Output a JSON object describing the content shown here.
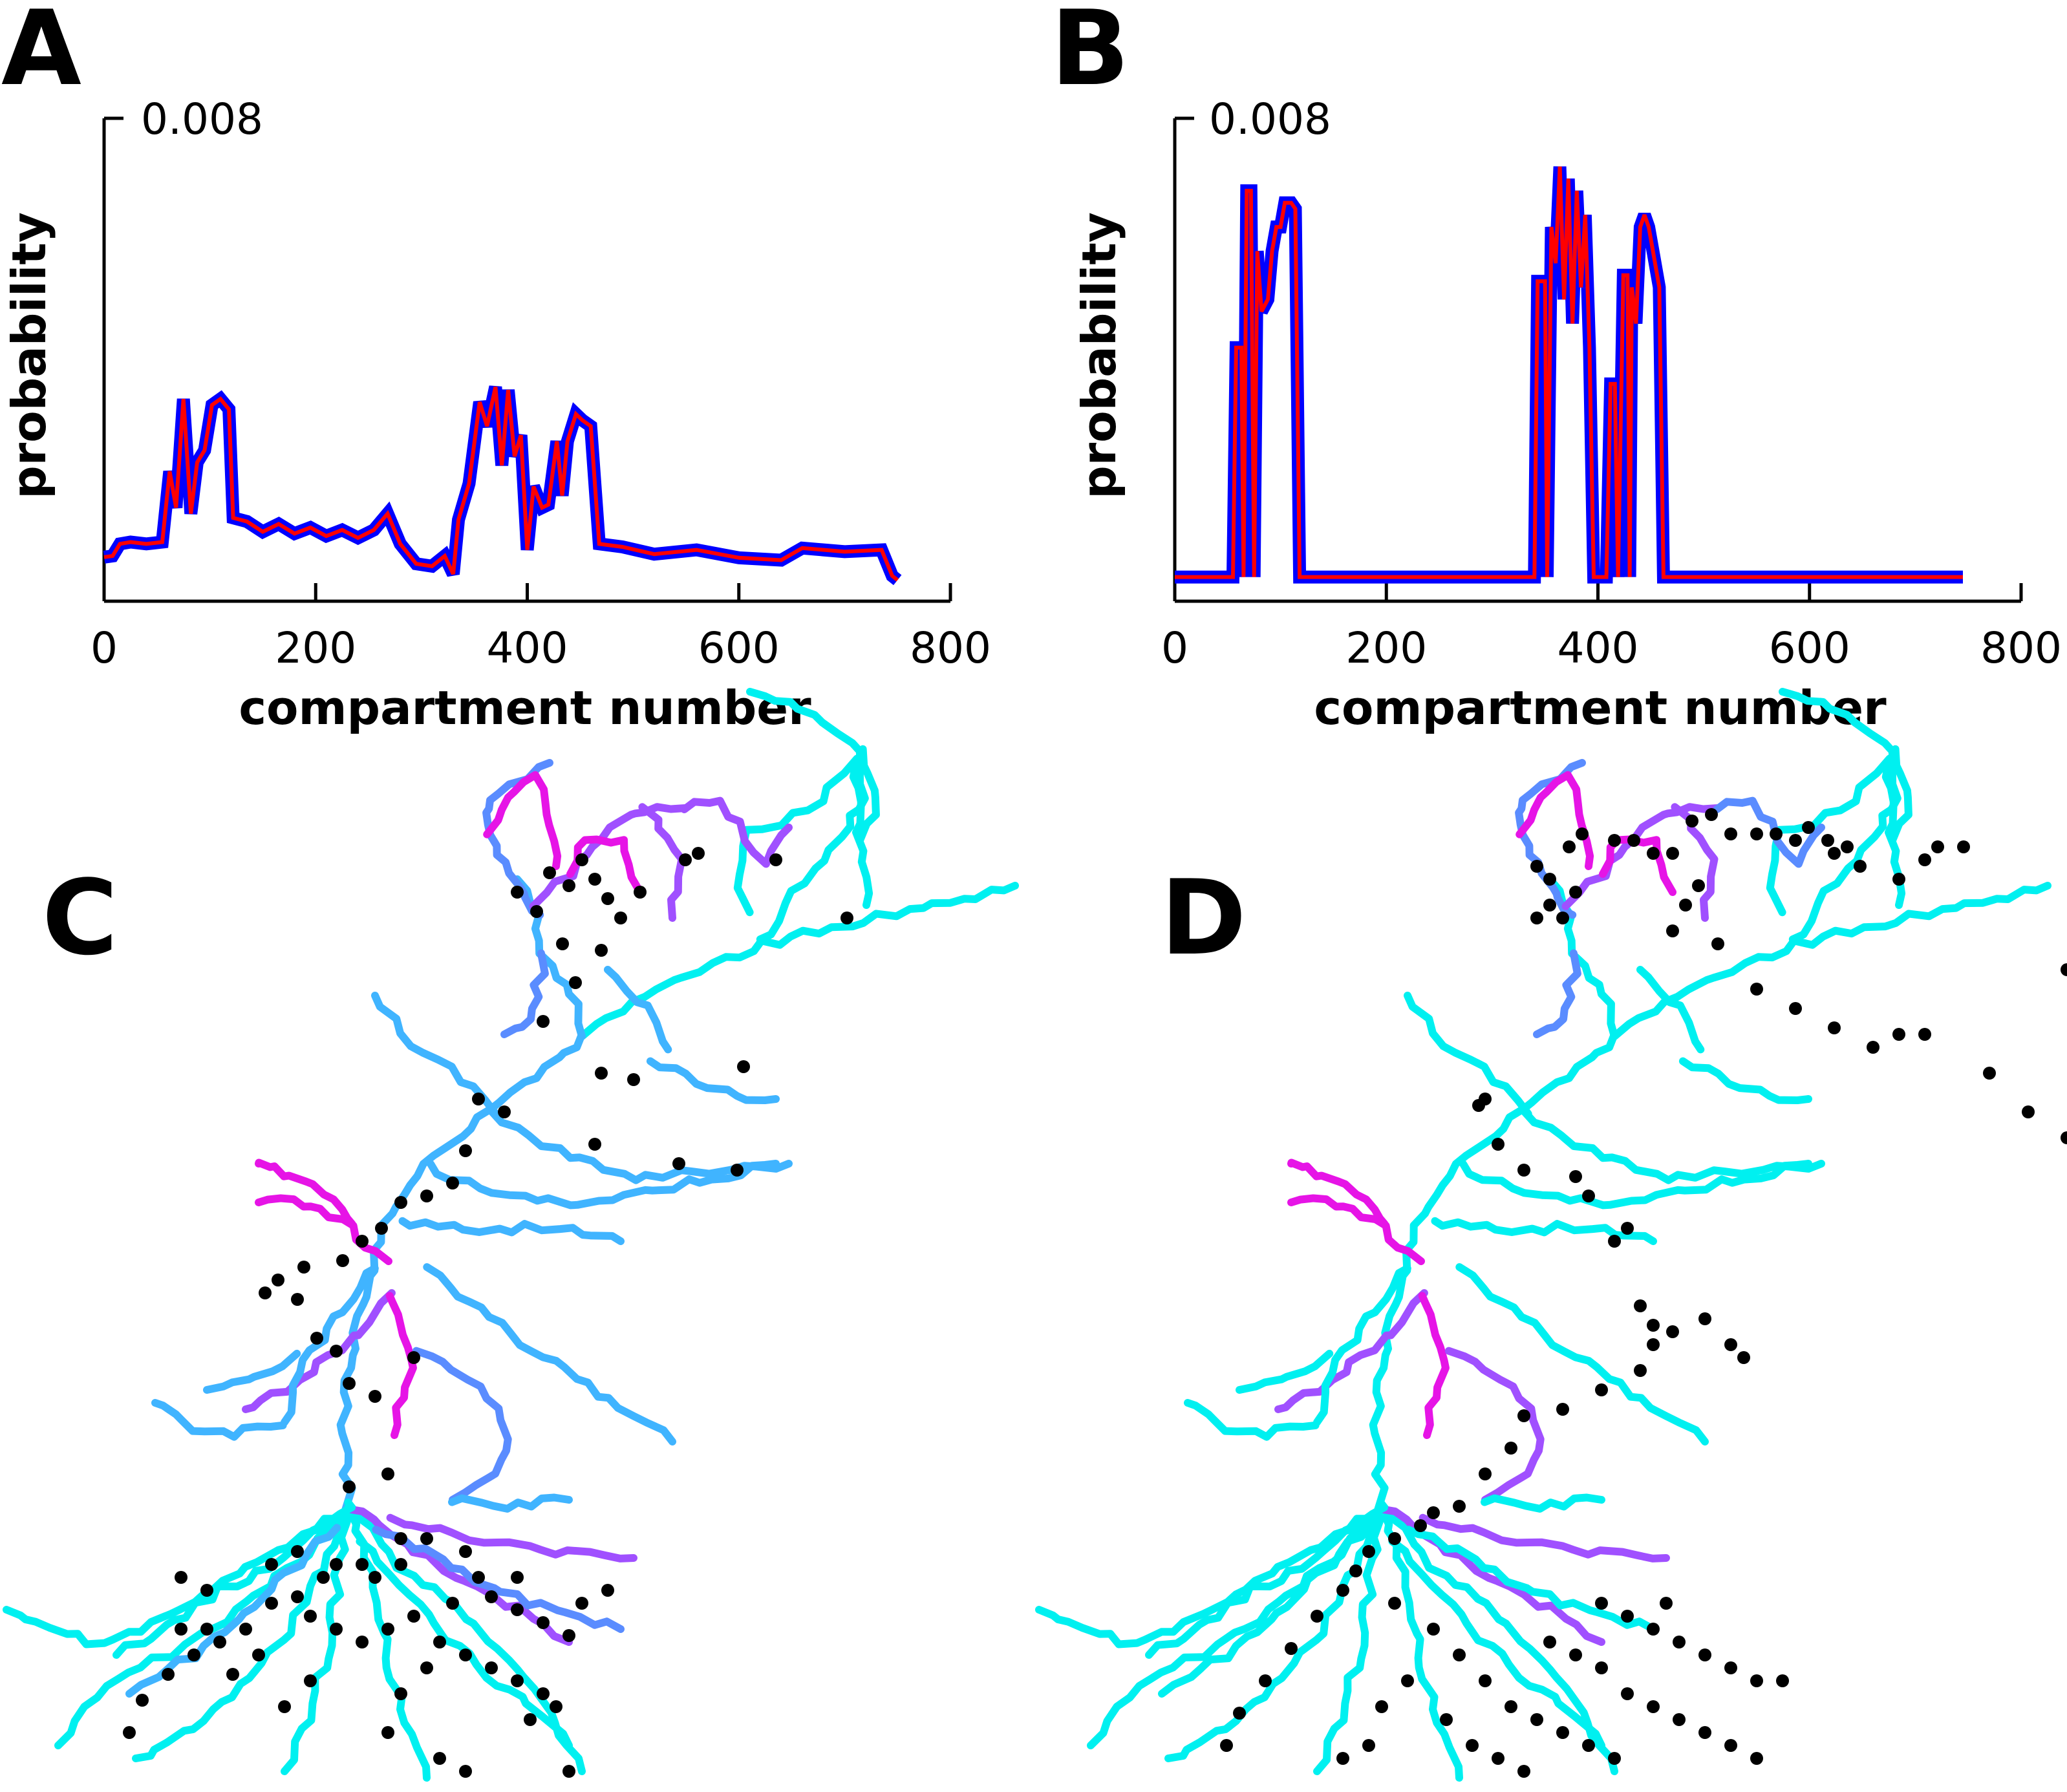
{
  "panel_letters": {
    "a": "A",
    "b": "B",
    "c": "C",
    "d": "D"
  },
  "chart_data": [
    {
      "panel": "A",
      "type": "line",
      "title": "",
      "xlabel": "compartment number",
      "ylabel": "probability",
      "xlim": [
        0,
        800
      ],
      "ylim": [
        0,
        0.008
      ],
      "xticks": [
        0,
        200,
        400,
        600,
        800
      ],
      "xtick_labels": [
        "0",
        "200",
        "400",
        "600",
        "800"
      ],
      "ytick_label": "0.008",
      "grid": false,
      "series": [
        {
          "color": "#0000ff",
          "values": [
            [
              0,
              0.00073
            ],
            [
              8,
              0.00075
            ],
            [
              15,
              0.00095
            ],
            [
              25,
              0.00098
            ],
            [
              40,
              0.00095
            ],
            [
              55,
              0.00098
            ],
            [
              62,
              0.00215
            ],
            [
              68,
              0.00155
            ],
            [
              75,
              0.00335
            ],
            [
              82,
              0.00145
            ],
            [
              88,
              0.0023
            ],
            [
              95,
              0.0025
            ],
            [
              102,
              0.00325
            ],
            [
              110,
              0.00335
            ],
            [
              118,
              0.00318
            ],
            [
              122,
              0.00138
            ],
            [
              135,
              0.00132
            ],
            [
              150,
              0.00115
            ],
            [
              165,
              0.00128
            ],
            [
              180,
              0.00112
            ],
            [
              195,
              0.00122
            ],
            [
              210,
              0.00108
            ],
            [
              225,
              0.00118
            ],
            [
              240,
              0.00105
            ],
            [
              255,
              0.00118
            ],
            [
              268,
              0.00145
            ],
            [
              280,
              0.00095
            ],
            [
              295,
              0.00062
            ],
            [
              310,
              0.00058
            ],
            [
              322,
              0.00075
            ],
            [
              330,
              0.00045
            ],
            [
              335,
              0.00135
            ],
            [
              345,
              0.00195
            ],
            [
              355,
              0.0033
            ],
            [
              362,
              0.0029
            ],
            [
              370,
              0.00355
            ],
            [
              376,
              0.00225
            ],
            [
              382,
              0.0035
            ],
            [
              388,
              0.0024
            ],
            [
              394,
              0.00275
            ],
            [
              400,
              0.00085
            ],
            [
              406,
              0.0019
            ],
            [
              414,
              0.00155
            ],
            [
              420,
              0.0016
            ],
            [
              428,
              0.00265
            ],
            [
              433,
              0.00175
            ],
            [
              438,
              0.00265
            ],
            [
              446,
              0.0031
            ],
            [
              452,
              0.003
            ],
            [
              460,
              0.0029
            ],
            [
              468,
              0.00095
            ],
            [
              490,
              0.0009
            ],
            [
              520,
              0.00078
            ],
            [
              560,
              0.00085
            ],
            [
              600,
              0.00072
            ],
            [
              640,
              0.00068
            ],
            [
              660,
              0.00088
            ],
            [
              700,
              0.00082
            ],
            [
              735,
              0.00085
            ],
            [
              745,
              0.00042
            ],
            [
              750,
              0.00035
            ]
          ]
        },
        {
          "color": "#ff0000",
          "values": [
            [
              0,
              0.00073
            ],
            [
              8,
              0.00075
            ],
            [
              15,
              0.00095
            ],
            [
              25,
              0.00098
            ],
            [
              40,
              0.00095
            ],
            [
              55,
              0.00098
            ],
            [
              62,
              0.00215
            ],
            [
              68,
              0.00155
            ],
            [
              75,
              0.00335
            ],
            [
              82,
              0.00145
            ],
            [
              88,
              0.0023
            ],
            [
              95,
              0.0025
            ],
            [
              102,
              0.00325
            ],
            [
              110,
              0.00335
            ],
            [
              118,
              0.00318
            ],
            [
              122,
              0.00138
            ],
            [
              135,
              0.00132
            ],
            [
              150,
              0.00115
            ],
            [
              165,
              0.00128
            ],
            [
              180,
              0.00112
            ],
            [
              195,
              0.00122
            ],
            [
              210,
              0.00108
            ],
            [
              225,
              0.00118
            ],
            [
              240,
              0.00105
            ],
            [
              255,
              0.00118
            ],
            [
              268,
              0.00145
            ],
            [
              280,
              0.00095
            ],
            [
              295,
              0.00062
            ],
            [
              310,
              0.00058
            ],
            [
              322,
              0.00075
            ],
            [
              330,
              0.00045
            ],
            [
              335,
              0.00135
            ],
            [
              345,
              0.00195
            ],
            [
              355,
              0.0033
            ],
            [
              362,
              0.0029
            ],
            [
              370,
              0.00355
            ],
            [
              376,
              0.00225
            ],
            [
              382,
              0.0035
            ],
            [
              388,
              0.0024
            ],
            [
              394,
              0.00275
            ],
            [
              400,
              0.00085
            ],
            [
              406,
              0.0019
            ],
            [
              414,
              0.00155
            ],
            [
              420,
              0.0016
            ],
            [
              428,
              0.00265
            ],
            [
              433,
              0.00175
            ],
            [
              438,
              0.00265
            ],
            [
              446,
              0.0031
            ],
            [
              452,
              0.003
            ],
            [
              460,
              0.0029
            ],
            [
              468,
              0.00095
            ],
            [
              490,
              0.0009
            ],
            [
              520,
              0.00078
            ],
            [
              560,
              0.00085
            ],
            [
              600,
              0.00072
            ],
            [
              640,
              0.00068
            ],
            [
              660,
              0.00088
            ],
            [
              700,
              0.00082
            ],
            [
              735,
              0.00085
            ],
            [
              745,
              0.00042
            ],
            [
              750,
              0.00035
            ]
          ]
        }
      ]
    },
    {
      "panel": "B",
      "type": "line",
      "title": "",
      "xlabel": "compartment number",
      "ylabel": "probability",
      "xlim": [
        0,
        800
      ],
      "ylim": [
        0,
        0.008
      ],
      "xticks": [
        0,
        200,
        400,
        600,
        800
      ],
      "xtick_labels": [
        "0",
        "200",
        "400",
        "600",
        "800"
      ],
      "ytick_label": "0.008",
      "grid": false,
      "series": [
        {
          "color": "#0000ff",
          "values": [
            [
              0,
              0.0004
            ],
            [
              55,
              0.0004
            ],
            [
              58,
              0.0042
            ],
            [
              63,
              0.0042
            ],
            [
              65,
              0.0004
            ],
            [
              68,
              0.0068
            ],
            [
              72,
              0.0068
            ],
            [
              75,
              0.0004
            ],
            [
              78,
              0.0058
            ],
            [
              82,
              0.0048
            ],
            [
              88,
              0.005
            ],
            [
              92,
              0.0058
            ],
            [
              96,
              0.0062
            ],
            [
              100,
              0.0062
            ],
            [
              104,
              0.0066
            ],
            [
              110,
              0.0066
            ],
            [
              114,
              0.0065
            ],
            [
              118,
              0.0004
            ],
            [
              340,
              0.0004
            ],
            [
              343,
              0.0053
            ],
            [
              350,
              0.0053
            ],
            [
              352,
              0.0004
            ],
            [
              356,
              0.0062
            ],
            [
              360,
              0.0056
            ],
            [
              364,
              0.0072
            ],
            [
              368,
              0.005
            ],
            [
              372,
              0.007
            ],
            [
              376,
              0.0046
            ],
            [
              380,
              0.0068
            ],
            [
              384,
              0.0052
            ],
            [
              388,
              0.0064
            ],
            [
              392,
              0.0042
            ],
            [
              396,
              0.0004
            ],
            [
              408,
              0.0004
            ],
            [
              412,
              0.0036
            ],
            [
              416,
              0.0036
            ],
            [
              419,
              0.0004
            ],
            [
              424,
              0.0054
            ],
            [
              428,
              0.0054
            ],
            [
              430,
              0.0004
            ],
            [
              432,
              0.0052
            ],
            [
              436,
              0.0046
            ],
            [
              440,
              0.0062
            ],
            [
              444,
              0.0064
            ],
            [
              448,
              0.0062
            ],
            [
              452,
              0.0058
            ],
            [
              458,
              0.0052
            ],
            [
              462,
              0.0004
            ],
            [
              745,
              0.0004
            ]
          ]
        },
        {
          "color": "#ff0000",
          "values": [
            [
              0,
              0.0004
            ],
            [
              55,
              0.0004
            ],
            [
              58,
              0.0042
            ],
            [
              63,
              0.0042
            ],
            [
              65,
              0.0004
            ],
            [
              68,
              0.0068
            ],
            [
              72,
              0.0068
            ],
            [
              75,
              0.0004
            ],
            [
              78,
              0.0058
            ],
            [
              82,
              0.0048
            ],
            [
              88,
              0.005
            ],
            [
              92,
              0.0058
            ],
            [
              96,
              0.0062
            ],
            [
              100,
              0.0062
            ],
            [
              104,
              0.0066
            ],
            [
              110,
              0.0066
            ],
            [
              114,
              0.0065
            ],
            [
              118,
              0.0004
            ],
            [
              340,
              0.0004
            ],
            [
              343,
              0.0053
            ],
            [
              350,
              0.0053
            ],
            [
              352,
              0.0004
            ],
            [
              356,
              0.0062
            ],
            [
              360,
              0.0056
            ],
            [
              364,
              0.0072
            ],
            [
              368,
              0.005
            ],
            [
              372,
              0.007
            ],
            [
              376,
              0.0046
            ],
            [
              380,
              0.0068
            ],
            [
              384,
              0.0052
            ],
            [
              388,
              0.0064
            ],
            [
              392,
              0.0042
            ],
            [
              396,
              0.0004
            ],
            [
              408,
              0.0004
            ],
            [
              412,
              0.0036
            ],
            [
              416,
              0.0036
            ],
            [
              419,
              0.0004
            ],
            [
              424,
              0.0054
            ],
            [
              428,
              0.0054
            ],
            [
              430,
              0.0004
            ],
            [
              432,
              0.0052
            ],
            [
              436,
              0.0046
            ],
            [
              440,
              0.0062
            ],
            [
              444,
              0.0064
            ],
            [
              448,
              0.0062
            ],
            [
              452,
              0.0058
            ],
            [
              458,
              0.0052
            ],
            [
              462,
              0.0004
            ],
            [
              745,
              0.0004
            ]
          ]
        }
      ]
    }
  ],
  "morphology_colors": {
    "low": "#00f0f0",
    "mid_low": "#40b4ff",
    "mid": "#5a8cff",
    "mid_high": "#a050ff",
    "high": "#e614e6",
    "marker": "#000000"
  }
}
